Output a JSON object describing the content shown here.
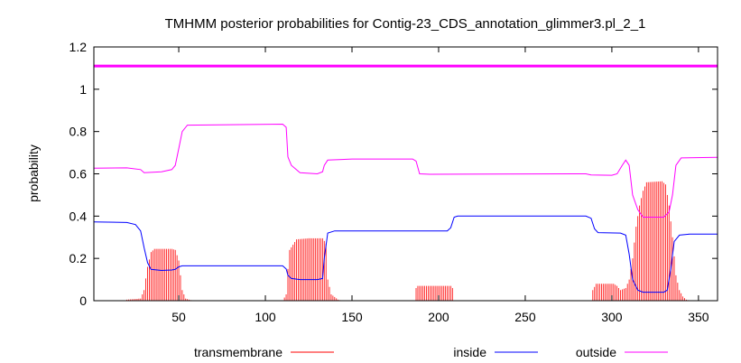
{
  "chart_data": {
    "type": "line",
    "title": "TMHMM posterior probabilities for Contig-23_CDS_annotation_glimmer3.pl_2_1",
    "xlabel": "",
    "ylabel": "probability",
    "xlim": [
      1,
      361
    ],
    "ylim": [
      0,
      1.2
    ],
    "x_ticks": [
      50,
      100,
      150,
      200,
      250,
      300,
      350
    ],
    "y_ticks": [
      0,
      0.2,
      0.4,
      0.6,
      0.8,
      1,
      1.2
    ],
    "y_tick_labels": [
      "0",
      "0.2",
      "0.4",
      "0.6",
      "0.8",
      "1",
      "1.2"
    ],
    "grid": false,
    "legend_position": "bottom",
    "reference_line": {
      "y": 1.11,
      "color": "#ff00ff"
    },
    "series": [
      {
        "name": "transmembrane",
        "style": "impulses",
        "color": "#ff0000",
        "points": [
          [
            1,
            0
          ],
          [
            19,
            0
          ],
          [
            20,
            0.005
          ],
          [
            28,
            0.01
          ],
          [
            30,
            0.05
          ],
          [
            32,
            0.16
          ],
          [
            34,
            0.23
          ],
          [
            36,
            0.245
          ],
          [
            46,
            0.245
          ],
          [
            48,
            0.24
          ],
          [
            50,
            0.19
          ],
          [
            52,
            0.05
          ],
          [
            54,
            0.01
          ],
          [
            56,
            0.005
          ],
          [
            58,
            0
          ],
          [
            110,
            0
          ],
          [
            112,
            0.03
          ],
          [
            113,
            0.15
          ],
          [
            114,
            0.24
          ],
          [
            118,
            0.29
          ],
          [
            125,
            0.295
          ],
          [
            133,
            0.295
          ],
          [
            135,
            0.27
          ],
          [
            136,
            0.1
          ],
          [
            138,
            0.03
          ],
          [
            142,
            0.005
          ],
          [
            144,
            0
          ],
          [
            186,
            0
          ],
          [
            187,
            0.06
          ],
          [
            188,
            0.07
          ],
          [
            207,
            0.07
          ],
          [
            208,
            0.06
          ],
          [
            209,
            0
          ],
          [
            288,
            0
          ],
          [
            289,
            0.05
          ],
          [
            291,
            0.08
          ],
          [
            301,
            0.08
          ],
          [
            303,
            0.07
          ],
          [
            305,
            0.05
          ],
          [
            308,
            0.06
          ],
          [
            310,
            0.1
          ],
          [
            312,
            0.2
          ],
          [
            314,
            0.35
          ],
          [
            316,
            0.45
          ],
          [
            318,
            0.52
          ],
          [
            320,
            0.56
          ],
          [
            329,
            0.565
          ],
          [
            331,
            0.55
          ],
          [
            333,
            0.45
          ],
          [
            335,
            0.3
          ],
          [
            337,
            0.12
          ],
          [
            339,
            0.05
          ],
          [
            341,
            0.02
          ],
          [
            343,
            0.005
          ],
          [
            345,
            0
          ],
          [
            361,
            0
          ]
        ]
      },
      {
        "name": "inside",
        "style": "line",
        "color": "#0000ff",
        "points": [
          [
            1,
            0.373
          ],
          [
            20,
            0.37
          ],
          [
            25,
            0.36
          ],
          [
            28,
            0.33
          ],
          [
            30,
            0.25
          ],
          [
            32,
            0.18
          ],
          [
            34,
            0.148
          ],
          [
            40,
            0.143
          ],
          [
            46,
            0.145
          ],
          [
            48,
            0.148
          ],
          [
            50,
            0.16
          ],
          [
            52,
            0.165
          ],
          [
            110,
            0.165
          ],
          [
            112,
            0.15
          ],
          [
            113,
            0.12
          ],
          [
            115,
            0.105
          ],
          [
            120,
            0.1
          ],
          [
            130,
            0.1
          ],
          [
            133,
            0.105
          ],
          [
            134,
            0.2
          ],
          [
            136,
            0.32
          ],
          [
            140,
            0.33
          ],
          [
            190,
            0.33
          ],
          [
            205,
            0.33
          ],
          [
            207,
            0.345
          ],
          [
            209,
            0.395
          ],
          [
            211,
            0.4
          ],
          [
            285,
            0.4
          ],
          [
            288,
            0.39
          ],
          [
            290,
            0.34
          ],
          [
            292,
            0.322
          ],
          [
            305,
            0.32
          ],
          [
            308,
            0.31
          ],
          [
            310,
            0.22
          ],
          [
            312,
            0.1
          ],
          [
            315,
            0.05
          ],
          [
            318,
            0.04
          ],
          [
            330,
            0.04
          ],
          [
            332,
            0.05
          ],
          [
            334,
            0.15
          ],
          [
            336,
            0.28
          ],
          [
            339,
            0.31
          ],
          [
            345,
            0.315
          ],
          [
            361,
            0.315
          ]
        ]
      },
      {
        "name": "outside",
        "style": "line",
        "color": "#ff00ff",
        "points": [
          [
            1,
            0.627
          ],
          [
            20,
            0.628
          ],
          [
            28,
            0.62
          ],
          [
            30,
            0.605
          ],
          [
            40,
            0.61
          ],
          [
            46,
            0.62
          ],
          [
            48,
            0.64
          ],
          [
            50,
            0.72
          ],
          [
            52,
            0.8
          ],
          [
            55,
            0.83
          ],
          [
            110,
            0.835
          ],
          [
            112,
            0.82
          ],
          [
            113,
            0.68
          ],
          [
            115,
            0.64
          ],
          [
            120,
            0.605
          ],
          [
            130,
            0.6
          ],
          [
            133,
            0.61
          ],
          [
            134,
            0.64
          ],
          [
            136,
            0.665
          ],
          [
            150,
            0.67
          ],
          [
            185,
            0.67
          ],
          [
            187,
            0.66
          ],
          [
            189,
            0.6
          ],
          [
            195,
            0.598
          ],
          [
            285,
            0.6
          ],
          [
            288,
            0.595
          ],
          [
            300,
            0.593
          ],
          [
            303,
            0.6
          ],
          [
            306,
            0.64
          ],
          [
            308,
            0.665
          ],
          [
            310,
            0.64
          ],
          [
            312,
            0.5
          ],
          [
            315,
            0.43
          ],
          [
            318,
            0.395
          ],
          [
            330,
            0.395
          ],
          [
            333,
            0.42
          ],
          [
            335,
            0.5
          ],
          [
            337,
            0.64
          ],
          [
            340,
            0.675
          ],
          [
            361,
            0.678
          ]
        ]
      }
    ]
  }
}
